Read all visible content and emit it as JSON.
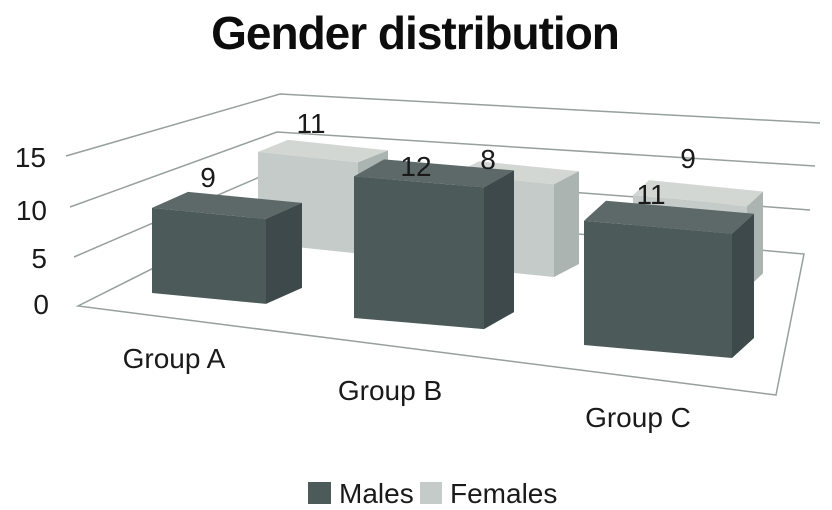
{
  "chart_data": {
    "type": "bar",
    "projection": "3d-perspective",
    "title": "Gender distribution",
    "categories": [
      "Group A",
      "Group B",
      "Group C"
    ],
    "series": [
      {
        "name": "Males",
        "values": [
          9,
          12,
          11
        ],
        "colors": {
          "front": "#4d5a5a",
          "top": "#5d6969",
          "side": "#3e494b"
        }
      },
      {
        "name": "Females",
        "values": [
          11,
          8,
          9
        ],
        "colors": {
          "front": "#c4cbc8",
          "top": "#d2d7d4",
          "side": "#acb4b1"
        }
      }
    ],
    "yticks": [
      "15",
      "10",
      "5",
      "0"
    ],
    "ylim": [
      0,
      15
    ],
    "grid": true,
    "legend_position": "bottom",
    "gridline_color": "#96a09e",
    "text_color": "#1a1a1a",
    "background_color": "#ffffff"
  }
}
